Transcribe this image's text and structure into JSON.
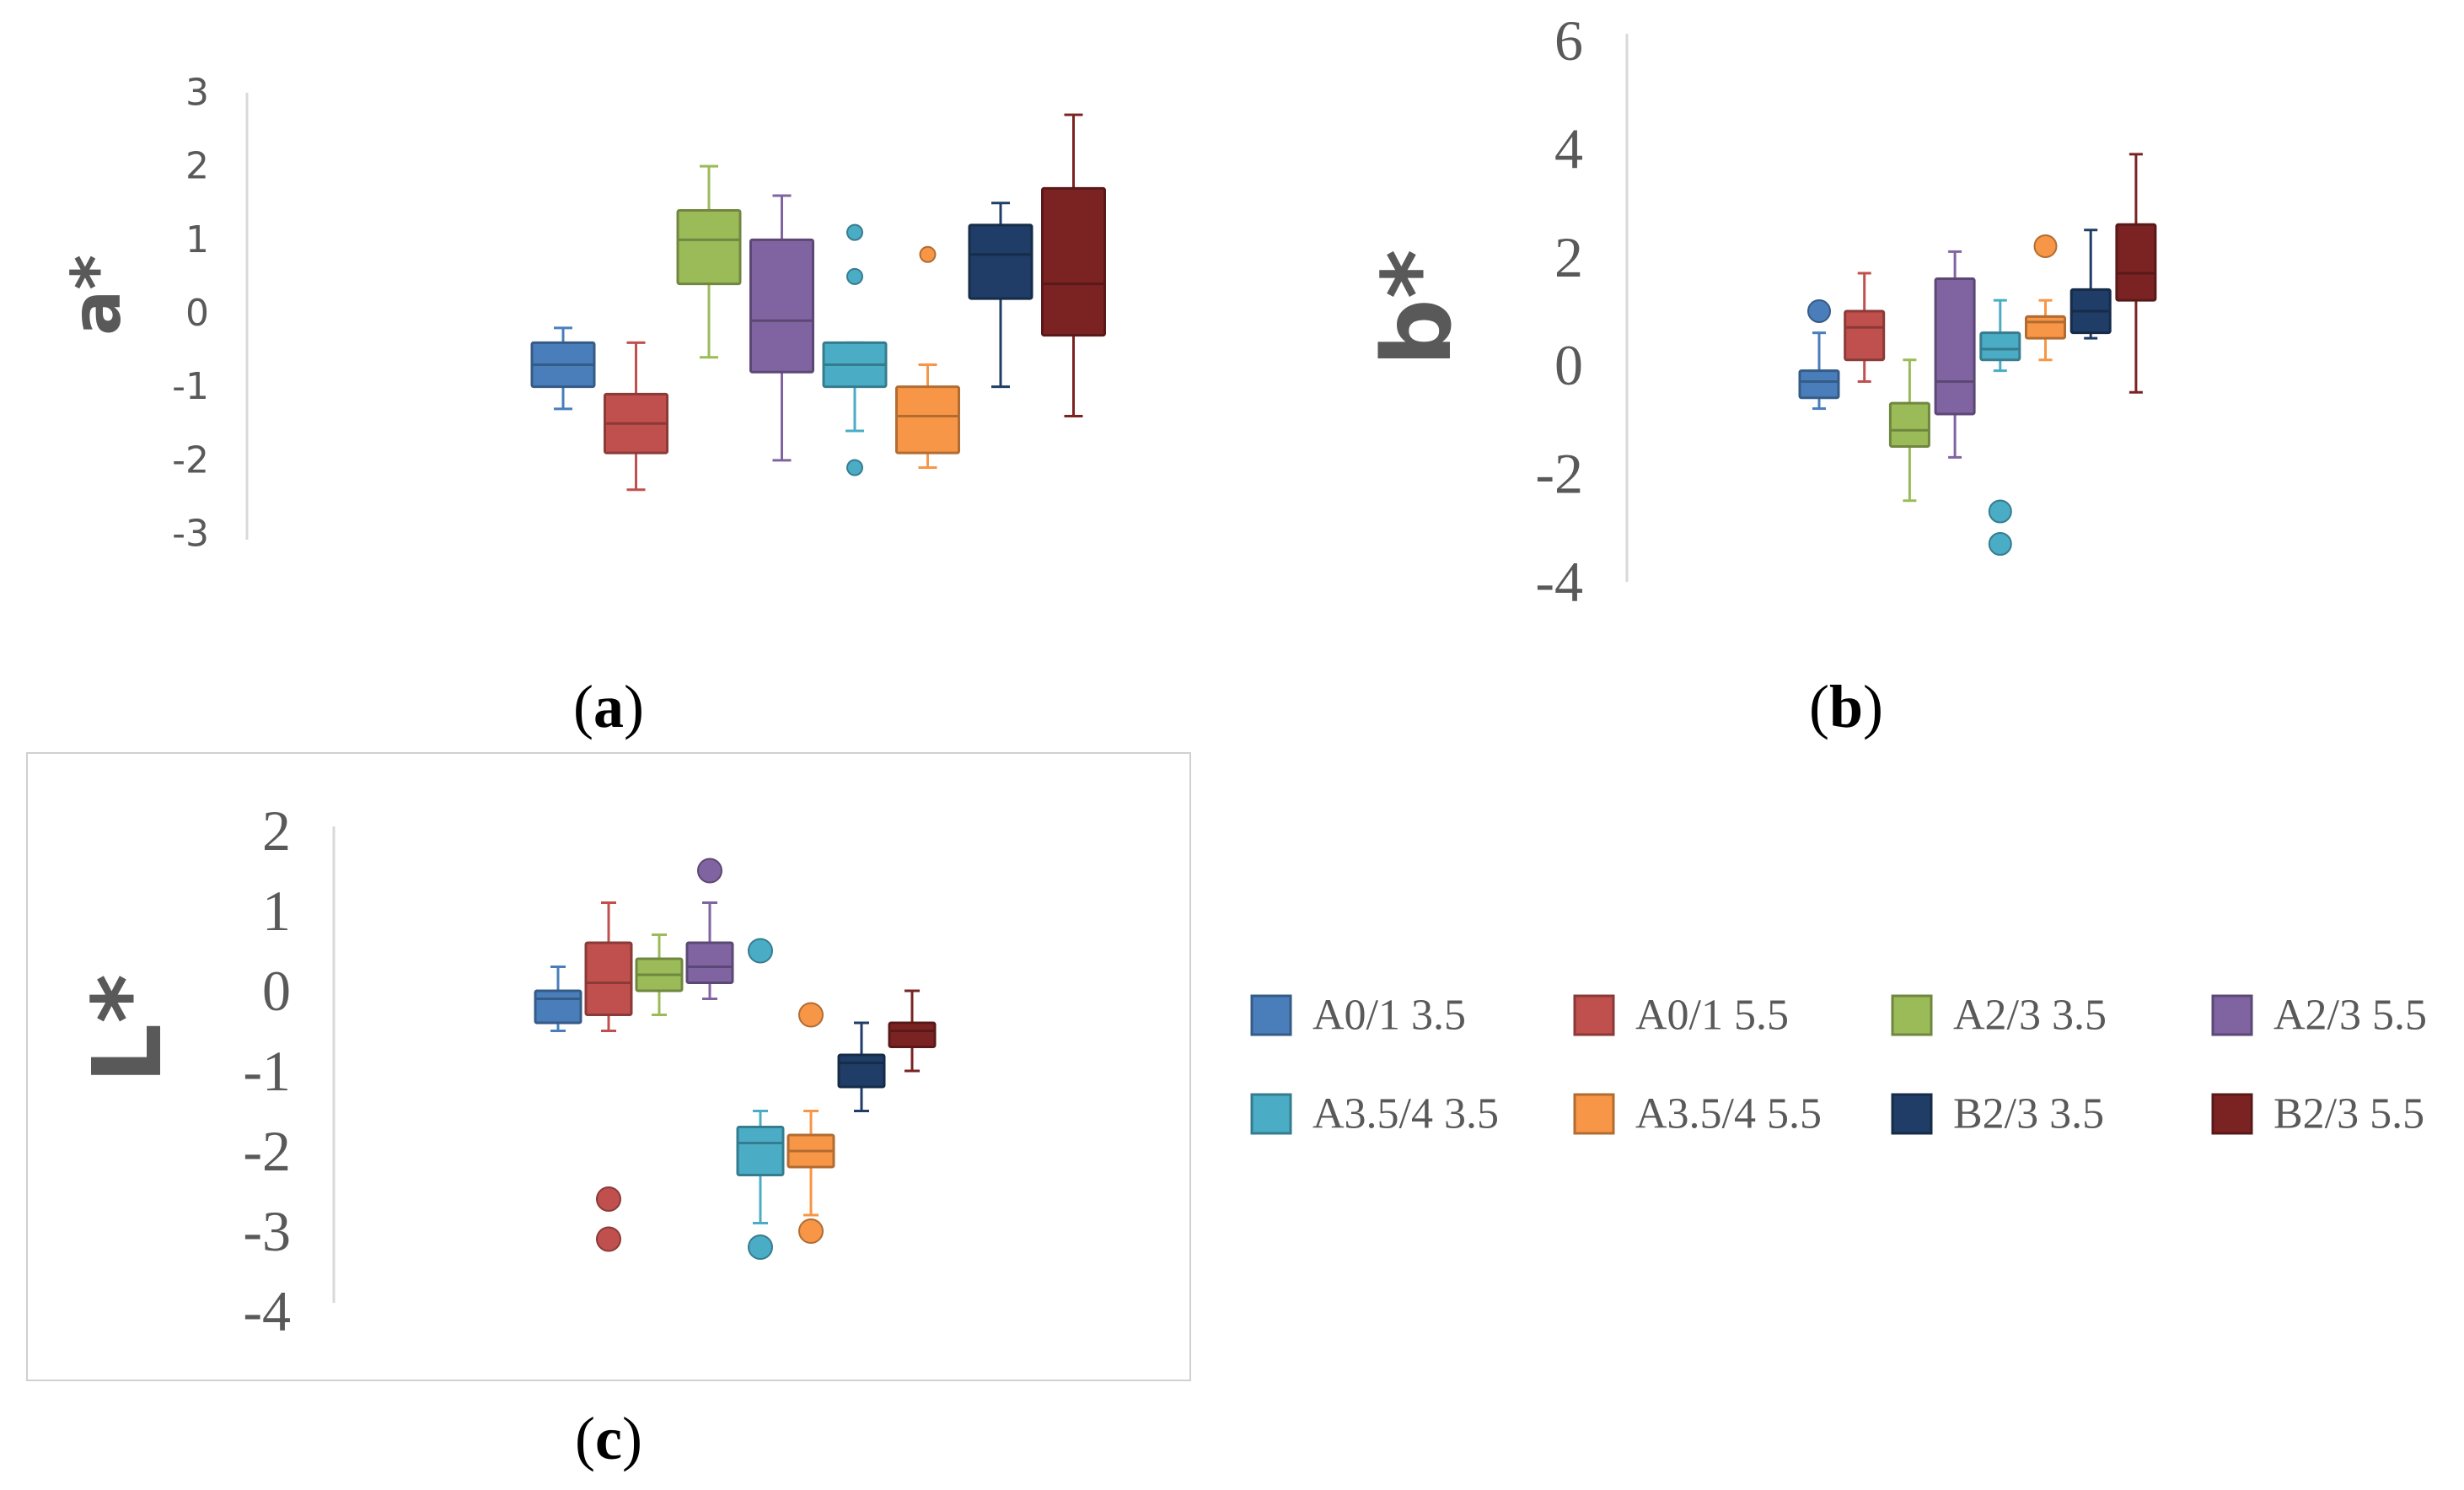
{
  "series_names": [
    "A0/1 3.5",
    "A0/1 5.5",
    "A2/3 3.5",
    "A2/3 5.5",
    "A3.5/4 3.5",
    "A3.5/4 5.5",
    "B2/3 3.5",
    "B2/3 5.5"
  ],
  "colors": [
    "#4a7ebb",
    "#c0504d",
    "#9bbb59",
    "#8064a2",
    "#4bacc6",
    "#f79646",
    "#1f3d66",
    "#7b2323"
  ],
  "chart_data": [
    {
      "id": "a",
      "type": "box",
      "caption_label": "a",
      "ylabel": "a*",
      "ylim": [
        -3,
        3
      ],
      "yticks": [
        "3",
        "2",
        "1",
        "0",
        "-1",
        "-2",
        "-3"
      ],
      "boxes": [
        {
          "series": "A0/1 3.5",
          "min": -1.3,
          "q1": -1.0,
          "median": -0.7,
          "q3": -0.4,
          "max": -0.2,
          "outliers": []
        },
        {
          "series": "A0/1 5.5",
          "min": -2.4,
          "q1": -1.9,
          "median": -1.5,
          "q3": -1.1,
          "max": -0.4,
          "outliers": []
        },
        {
          "series": "A2/3 3.5",
          "min": -0.6,
          "q1": 0.4,
          "median": 1.0,
          "q3": 1.4,
          "max": 2.0,
          "outliers": []
        },
        {
          "series": "A2/3 5.5",
          "min": -2.0,
          "q1": -0.8,
          "median": -0.1,
          "q3": 1.0,
          "max": 1.6,
          "outliers": []
        },
        {
          "series": "A3.5/4 3.5",
          "min": -1.6,
          "q1": -1.0,
          "median": -0.7,
          "q3": -0.4,
          "max": -0.4,
          "outliers": [
            1.1,
            0.5,
            -2.1
          ]
        },
        {
          "series": "A3.5/4 5.5",
          "min": -2.1,
          "q1": -1.9,
          "median": -1.4,
          "q3": -1.0,
          "max": -0.7,
          "outliers": [
            0.8
          ]
        },
        {
          "series": "B2/3 3.5",
          "min": -1.0,
          "q1": 0.2,
          "median": 0.8,
          "q3": 1.2,
          "max": 1.5,
          "outliers": []
        },
        {
          "series": "B2/3 5.5",
          "min": -1.4,
          "q1": -0.3,
          "median": 0.4,
          "q3": 1.7,
          "max": 2.7,
          "outliers": []
        }
      ]
    },
    {
      "id": "b",
      "type": "box",
      "caption_label": "b",
      "ylabel": "b*",
      "ylim": [
        -4,
        6
      ],
      "yticks": [
        "6",
        "4",
        "2",
        "0",
        "-2",
        "-4"
      ],
      "boxes": [
        {
          "series": "A0/1 3.5",
          "min": -0.8,
          "q1": -0.6,
          "median": -0.3,
          "q3": -0.1,
          "max": 0.6,
          "outliers": [
            1.0
          ]
        },
        {
          "series": "A0/1 5.5",
          "min": -0.3,
          "q1": 0.1,
          "median": 0.7,
          "q3": 1.0,
          "max": 1.7,
          "outliers": []
        },
        {
          "series": "A2/3 3.5",
          "min": -2.5,
          "q1": -1.5,
          "median": -1.2,
          "q3": -0.7,
          "max": 0.1,
          "outliers": []
        },
        {
          "series": "A2/3 5.5",
          "min": -1.7,
          "q1": -0.9,
          "median": -0.3,
          "q3": 1.6,
          "max": 2.1,
          "outliers": []
        },
        {
          "series": "A3.5/4 3.5",
          "min": -0.1,
          "q1": 0.1,
          "median": 0.3,
          "q3": 0.6,
          "max": 1.2,
          "outliers": [
            -2.7,
            -3.3
          ]
        },
        {
          "series": "A3.5/4 5.5",
          "min": 0.1,
          "q1": 0.5,
          "median": 0.8,
          "q3": 0.9,
          "max": 1.2,
          "outliers": [
            2.2
          ]
        },
        {
          "series": "B2/3 3.5",
          "min": 0.5,
          "q1": 0.6,
          "median": 1.0,
          "q3": 1.4,
          "max": 2.5,
          "outliers": []
        },
        {
          "series": "B2/3 5.5",
          "min": -0.5,
          "q1": 1.2,
          "median": 1.7,
          "q3": 2.6,
          "max": 3.9,
          "outliers": []
        }
      ]
    },
    {
      "id": "c",
      "type": "box",
      "caption_label": "c",
      "ylabel": "L*",
      "ylim": [
        -4,
        2
      ],
      "yticks": [
        "2",
        "1",
        "0",
        "-1",
        "-2",
        "-3",
        "-4"
      ],
      "boxes": [
        {
          "series": "A0/1 3.5",
          "min": -0.5,
          "q1": -0.4,
          "median": -0.1,
          "q3": 0.0,
          "max": 0.3,
          "outliers": []
        },
        {
          "series": "A0/1 5.5",
          "min": -0.5,
          "q1": -0.3,
          "median": 0.1,
          "q3": 0.6,
          "max": 1.1,
          "outliers": [
            -2.6,
            -3.1
          ]
        },
        {
          "series": "A2/3 3.5",
          "min": -0.3,
          "q1": 0.0,
          "median": 0.2,
          "q3": 0.4,
          "max": 0.7,
          "outliers": []
        },
        {
          "series": "A2/3 5.5",
          "min": -0.1,
          "q1": 0.1,
          "median": 0.3,
          "q3": 0.6,
          "max": 1.1,
          "outliers": [
            1.5
          ]
        },
        {
          "series": "A3.5/4 3.5",
          "min": -2.9,
          "q1": -2.3,
          "median": -1.9,
          "q3": -1.7,
          "max": -1.5,
          "outliers": [
            0.5,
            -3.2
          ]
        },
        {
          "series": "A3.5/4 5.5",
          "min": -2.8,
          "q1": -2.2,
          "median": -2.0,
          "q3": -1.8,
          "max": -1.5,
          "outliers": [
            -0.3,
            -3.0
          ]
        },
        {
          "series": "B2/3 3.5",
          "min": -1.5,
          "q1": -1.2,
          "median": -0.9,
          "q3": -0.8,
          "max": -0.4,
          "outliers": []
        },
        {
          "series": "B2/3 5.5",
          "min": -1.0,
          "q1": -0.7,
          "median": -0.5,
          "q3": -0.4,
          "max": 0.0,
          "outliers": []
        }
      ]
    }
  ]
}
